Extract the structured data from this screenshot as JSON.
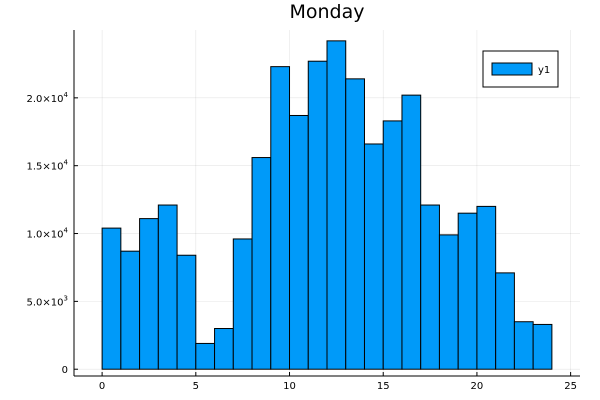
{
  "chart_data": {
    "type": "bar",
    "title": "Monday",
    "xlabel": "",
    "ylabel": "",
    "xlim": [
      -1.5,
      25.5
    ],
    "ylim": [
      -500,
      25000
    ],
    "xticks": [
      0,
      5,
      10,
      15,
      20,
      25
    ],
    "yticks": [
      {
        "value": 0,
        "mantissa": "0",
        "exp": ""
      },
      {
        "value": 5000,
        "mantissa": "5.0×10",
        "exp": "3"
      },
      {
        "value": 10000,
        "mantissa": "1.0×10",
        "exp": "4"
      },
      {
        "value": 15000,
        "mantissa": "1.5×10",
        "exp": "4"
      },
      {
        "value": 20000,
        "mantissa": "2.0×10",
        "exp": "4"
      }
    ],
    "grid": true,
    "legend": {
      "position": "top-right",
      "entries": [
        {
          "name": "y1",
          "color": "#009AF9"
        }
      ]
    },
    "bar_width": 1,
    "series": [
      {
        "name": "y1",
        "color": "#009AF9",
        "x": [
          0,
          1,
          2,
          3,
          4,
          5,
          6,
          7,
          8,
          9,
          10,
          11,
          12,
          13,
          14,
          15,
          16,
          17,
          18,
          19,
          20,
          21,
          22,
          23
        ],
        "values": [
          10400,
          8700,
          11100,
          12100,
          8400,
          1900,
          3000,
          9600,
          15600,
          22300,
          18700,
          22700,
          24200,
          21400,
          16600,
          18300,
          20200,
          12100,
          9900,
          11500,
          12000,
          7100,
          3500,
          3300
        ]
      }
    ]
  }
}
